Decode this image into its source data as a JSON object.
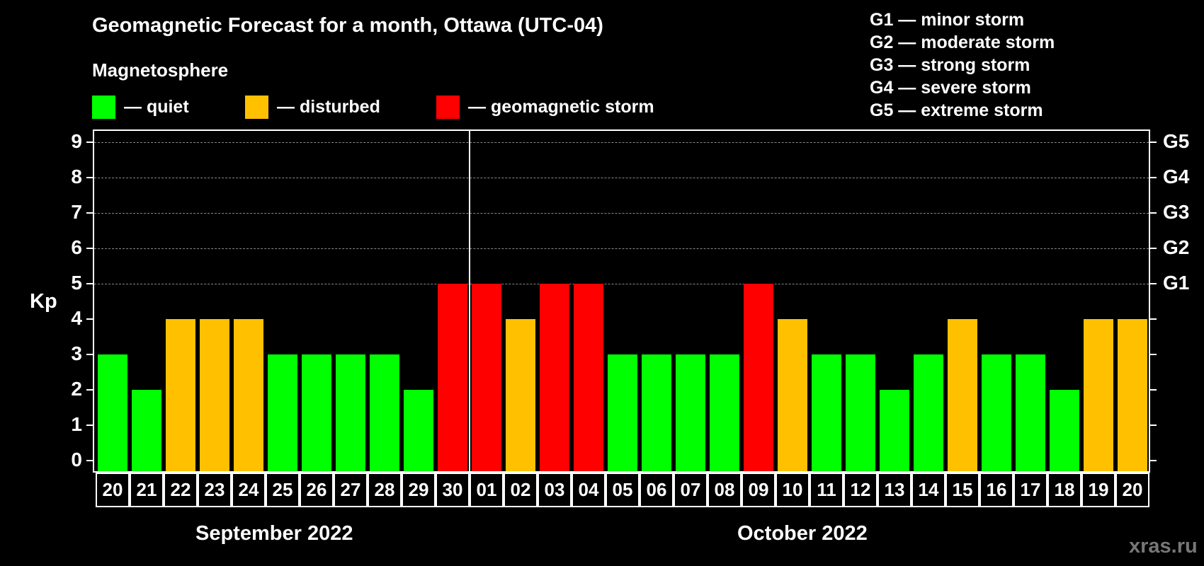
{
  "header": {
    "title": "Geomagnetic Forecast for a month, Ottawa (UTC-04)",
    "subtitle": "Magnetosphere"
  },
  "legend": [
    {
      "label": "— quiet",
      "color": "#00ff00"
    },
    {
      "label": "— disturbed",
      "color": "#ffc000"
    },
    {
      "label": "— geomagnetic storm",
      "color": "#ff0000"
    }
  ],
  "g_legend": [
    "G1 — minor storm",
    "G2 — moderate storm",
    "G3 — strong storm",
    "G4 — severe storm",
    "G5 — extreme storm"
  ],
  "axis": {
    "ylabel": "Kp",
    "yticks": [
      "0",
      "1",
      "2",
      "3",
      "4",
      "5",
      "6",
      "7",
      "8",
      "9"
    ],
    "right_labels": {
      "5": "G1",
      "6": "G2",
      "7": "G3",
      "8": "G4",
      "9": "G5"
    }
  },
  "months": {
    "first": "September 2022",
    "second": "October 2022"
  },
  "watermark": "xras.ru",
  "colors": {
    "quiet": "#00ff00",
    "disturbed": "#ffc000",
    "storm": "#ff0000"
  },
  "chart_data": {
    "type": "bar",
    "title": "Geomagnetic Forecast for a month, Ottawa (UTC-04)",
    "xlabel": "September 2022 / October 2022",
    "ylabel": "Kp",
    "ylim": [
      0,
      9
    ],
    "grid": true,
    "categories": [
      "20",
      "21",
      "22",
      "23",
      "24",
      "25",
      "26",
      "27",
      "28",
      "29",
      "30",
      "01",
      "02",
      "03",
      "04",
      "05",
      "06",
      "07",
      "08",
      "09",
      "10",
      "11",
      "12",
      "13",
      "14",
      "15",
      "16",
      "17",
      "18",
      "19",
      "20"
    ],
    "values": [
      3,
      2,
      4,
      4,
      4,
      3,
      3,
      3,
      3,
      2,
      5,
      5,
      4,
      5,
      5,
      3,
      3,
      3,
      3,
      5,
      4,
      3,
      3,
      2,
      3,
      4,
      3,
      3,
      2,
      4,
      4
    ],
    "status": [
      "quiet",
      "quiet",
      "disturbed",
      "disturbed",
      "disturbed",
      "quiet",
      "quiet",
      "quiet",
      "quiet",
      "quiet",
      "storm",
      "storm",
      "disturbed",
      "storm",
      "storm",
      "quiet",
      "quiet",
      "quiet",
      "quiet",
      "storm",
      "disturbed",
      "quiet",
      "quiet",
      "quiet",
      "quiet",
      "disturbed",
      "quiet",
      "quiet",
      "quiet",
      "disturbed",
      "disturbed"
    ],
    "legend": [
      "quiet",
      "disturbed",
      "geomagnetic storm"
    ],
    "right_axis": {
      "5": "G1",
      "6": "G2",
      "7": "G3",
      "8": "G4",
      "9": "G5"
    }
  }
}
